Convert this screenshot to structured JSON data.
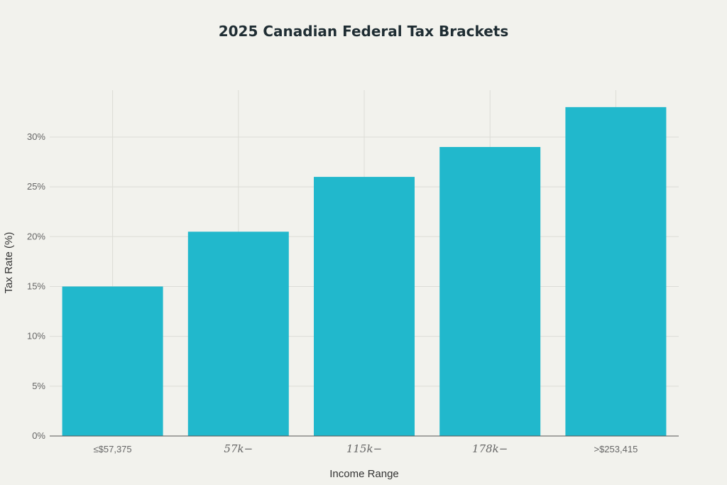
{
  "chart_data": {
    "type": "bar",
    "title": "2025 Canadian Federal Tax Brackets",
    "xlabel": "Income Range",
    "ylabel": "Tax Rate (%)",
    "categories": [
      "≤$57,375",
      "57k−",
      "115k−",
      "178k−",
      ">$253,415"
    ],
    "category_math_style": [
      false,
      true,
      true,
      true,
      false
    ],
    "values": [
      15,
      20.5,
      26,
      29,
      33
    ],
    "ylim": [
      0,
      34.7
    ],
    "yticks": [
      0,
      5,
      10,
      15,
      20,
      25,
      30
    ],
    "ytick_labels": [
      "0%",
      "5%",
      "10%",
      "15%",
      "20%",
      "25%",
      "30%"
    ],
    "grid": true,
    "bar_color": "#21b8cc",
    "background": "#f2f2ed"
  }
}
